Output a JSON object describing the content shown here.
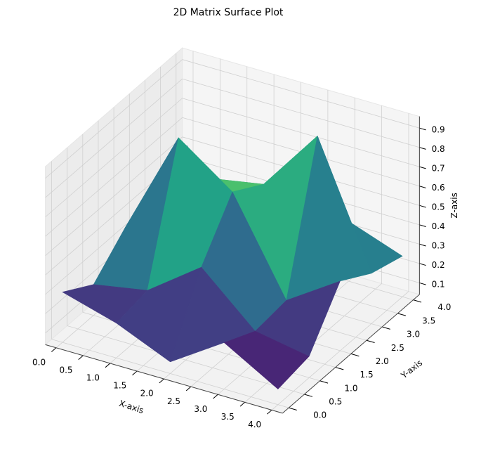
{
  "chart_data": {
    "type": "surface3d",
    "title": "2D Matrix Surface Plot",
    "x_label": "X-axis",
    "y_label": "Y-axis",
    "z_label": "Z-axis",
    "x": [
      0,
      1,
      2,
      3,
      4
    ],
    "y": [
      0,
      1,
      2,
      3,
      4
    ],
    "z": [
      [
        0.3,
        0.22,
        0.1,
        0.28,
        0.12
      ],
      [
        0.2,
        0.25,
        0.45,
        0.2,
        0.15
      ],
      [
        0.35,
        0.9,
        0.7,
        0.22,
        0.4
      ],
      [
        0.15,
        0.55,
        0.6,
        0.93,
        0.3
      ],
      [
        0.5,
        0.2,
        0.45,
        0.35,
        0.25
      ]
    ],
    "colormap": "viridis",
    "xlim": [
      -0.2,
      4.2
    ],
    "ylim": [
      -0.2,
      4.2
    ],
    "zlim": [
      0.04,
      0.96
    ],
    "xticks": [
      {
        "value": 0,
        "label": "0.0"
      },
      0.5,
      {
        "value": 1,
        "label": "1.0"
      },
      1.5,
      {
        "value": 2,
        "label": "2.0"
      },
      2.5,
      {
        "value": 3,
        "label": "3.0"
      },
      3.5,
      {
        "value": 4,
        "label": "4.0"
      }
    ],
    "yticks": [
      {
        "value": 0,
        "label": "0.0"
      },
      0.5,
      {
        "value": 1,
        "label": "1.0"
      },
      1.5,
      {
        "value": 2,
        "label": "2.0"
      },
      2.5,
      {
        "value": 3,
        "label": "3.0"
      },
      3.5,
      {
        "value": 4,
        "label": "4.0"
      }
    ],
    "zticks": [
      0.1,
      0.2,
      0.3,
      0.4,
      0.5,
      0.6,
      0.7,
      0.8,
      0.9
    ],
    "grid": true
  }
}
